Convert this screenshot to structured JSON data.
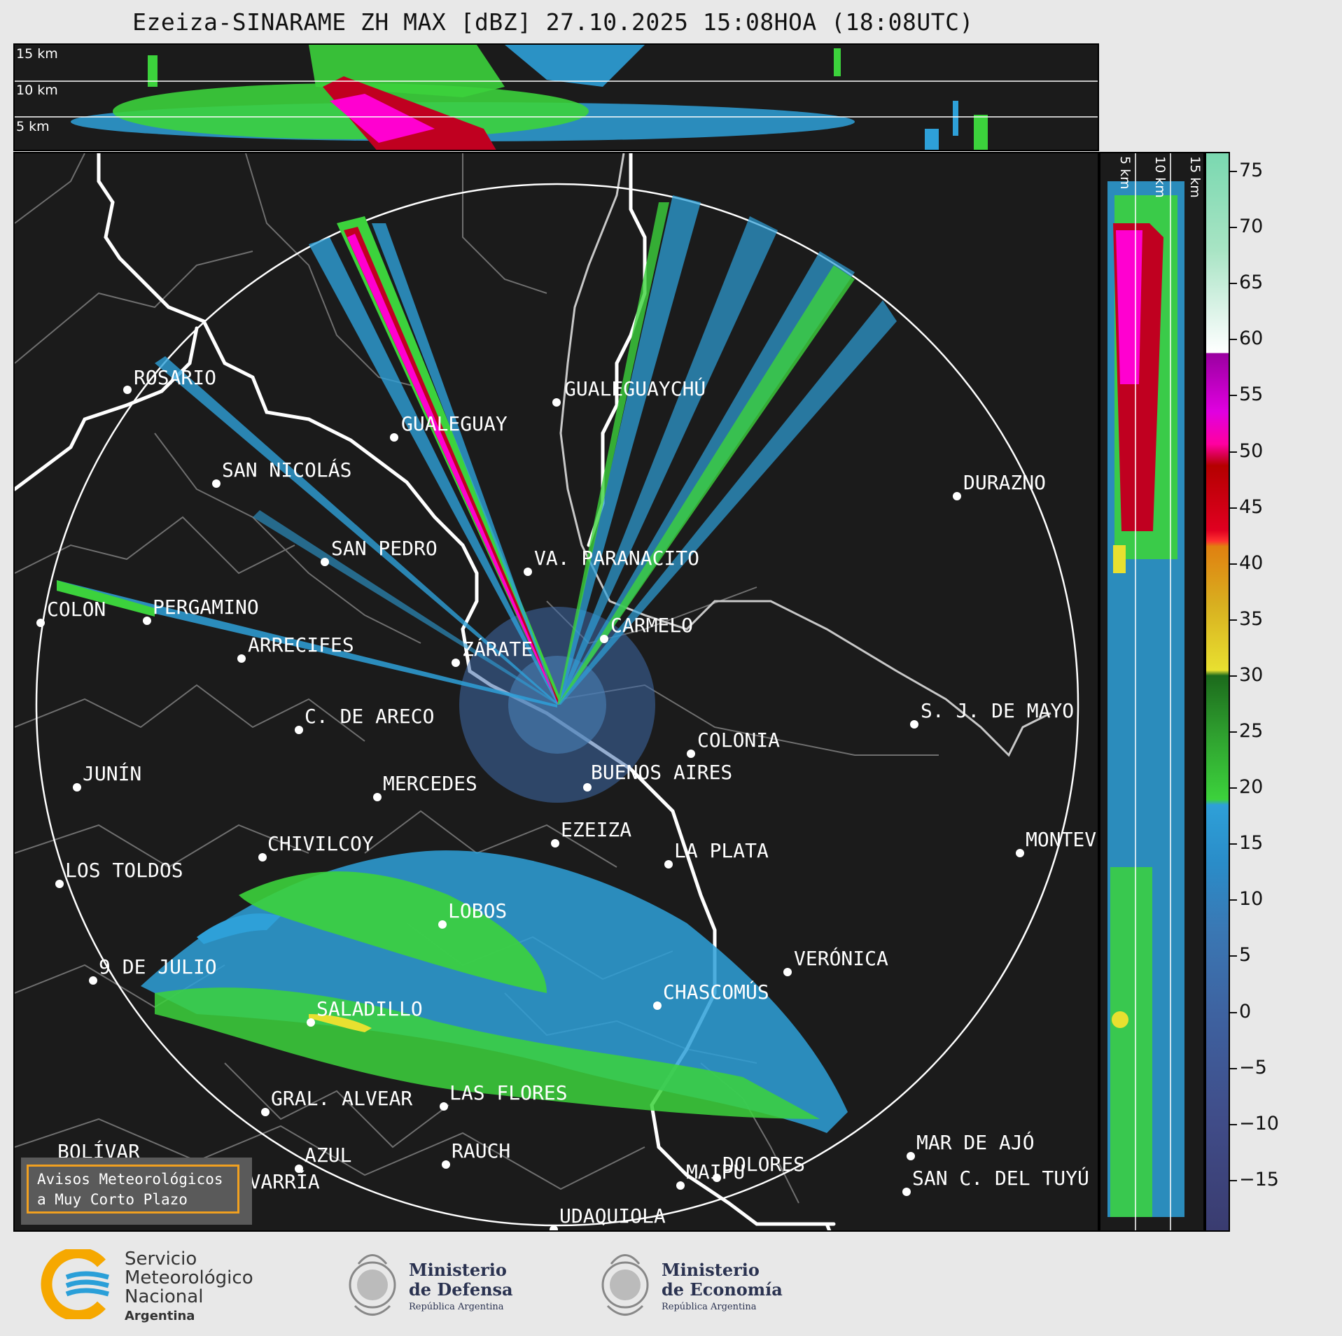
{
  "title": "Ezeiza-SINARAME ZH MAX [dBZ] 27.10.2025 15:08HOA (18:08UTC)",
  "top_altitude_labels": [
    "15 km",
    "10 km",
    "5 km"
  ],
  "side_altitude_labels": [
    "5 km",
    "10 km",
    "15 km"
  ],
  "colorbar": {
    "ticks": [
      "75",
      "70",
      "65",
      "60",
      "55",
      "50",
      "45",
      "40",
      "35",
      "30",
      "25",
      "20",
      "15",
      "10",
      "5",
      "0",
      "−5",
      "−10",
      "−15"
    ]
  },
  "cities": [
    {
      "name": "ROSARIO"
    },
    {
      "name": "GUALEGUAYCHÚ"
    },
    {
      "name": "GUALEGUAY"
    },
    {
      "name": "SAN NICOLÁS"
    },
    {
      "name": "DURAZNO"
    },
    {
      "name": "SAN PEDRO"
    },
    {
      "name": "VA. PARANACITO"
    },
    {
      "name": "COLON"
    },
    {
      "name": "PERGAMINO"
    },
    {
      "name": "CARMELO"
    },
    {
      "name": "ARRECIFES"
    },
    {
      "name": "ZÁRATE"
    },
    {
      "name": "C. DE ARECO"
    },
    {
      "name": "S. J. DE MAYO"
    },
    {
      "name": "COLONIA"
    },
    {
      "name": "JUNÍN"
    },
    {
      "name": "BUENOS AIRES"
    },
    {
      "name": "MERCEDES"
    },
    {
      "name": "EZEIZA"
    },
    {
      "name": "MONTEV"
    },
    {
      "name": "CHIVILCOY"
    },
    {
      "name": "LA PLATA"
    },
    {
      "name": "LOS TOLDOS"
    },
    {
      "name": "LOBOS"
    },
    {
      "name": "VERÓNICA"
    },
    {
      "name": "9 DE JULIO"
    },
    {
      "name": "CHASCOMÚS"
    },
    {
      "name": "SALADILLO"
    },
    {
      "name": "GRAL. ALVEAR"
    },
    {
      "name": "LAS FLORES"
    },
    {
      "name": "BOLÍVAR"
    },
    {
      "name": "DOLORES"
    },
    {
      "name": "SAN C. DEL TUYÚ"
    },
    {
      "name": "UDAQUIOLA"
    },
    {
      "name": "MAR DE AJÓ"
    },
    {
      "name": "AZUL"
    },
    {
      "name": "RAUCH"
    },
    {
      "name": "OLAVARRÍA"
    },
    {
      "name": "MAIPU"
    }
  ],
  "warning": {
    "line1": "Avisos Meteorológicos",
    "line2": "a Muy Corto Plazo"
  },
  "logos": {
    "smn_line1": "Servicio",
    "smn_line2": "Meteorológico",
    "smn_line3": "Nacional",
    "smn_line4": "Argentina",
    "defensa_line1": "Ministerio",
    "defensa_line2": "de Defensa",
    "defensa_line3": "República Argentina",
    "economia_line1": "Ministerio",
    "economia_line2": "de Economía",
    "economia_line3": "República Argentina"
  },
  "colors": {
    "background": "#1b1b1b",
    "light_echo": "#2ea0d8",
    "moderate_echo": "#3cd23c",
    "heavy_echo": "#c00020",
    "extreme_echo": "#ff00d0",
    "smn_orange": "#f6a800",
    "smn_blue": "#2a9fd8"
  }
}
